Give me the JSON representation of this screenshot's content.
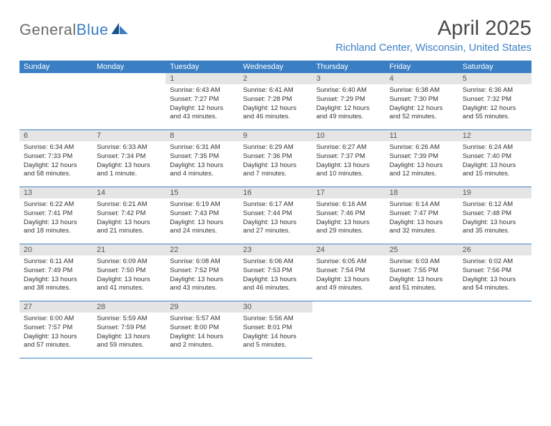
{
  "brand": {
    "name_gray": "General",
    "name_blue": "Blue"
  },
  "title": "April 2025",
  "location": "Richland Center, Wisconsin, United States",
  "colors": {
    "header_bg": "#3a7fc4",
    "day_num_bg": "#e5e5e5",
    "border": "#3a7fc4",
    "text": "#333333",
    "logo_gray": "#6b6b6b",
    "logo_blue": "#3a7fc4"
  },
  "weekdays": [
    "Sunday",
    "Monday",
    "Tuesday",
    "Wednesday",
    "Thursday",
    "Friday",
    "Saturday"
  ],
  "grid": {
    "leading_blanks": 2,
    "trailing_blanks": 3
  },
  "days": [
    {
      "n": 1,
      "sunrise": "6:43 AM",
      "sunset": "7:27 PM",
      "daylight": "12 hours and 43 minutes."
    },
    {
      "n": 2,
      "sunrise": "6:41 AM",
      "sunset": "7:28 PM",
      "daylight": "12 hours and 46 minutes."
    },
    {
      "n": 3,
      "sunrise": "6:40 AM",
      "sunset": "7:29 PM",
      "daylight": "12 hours and 49 minutes."
    },
    {
      "n": 4,
      "sunrise": "6:38 AM",
      "sunset": "7:30 PM",
      "daylight": "12 hours and 52 minutes."
    },
    {
      "n": 5,
      "sunrise": "6:36 AM",
      "sunset": "7:32 PM",
      "daylight": "12 hours and 55 minutes."
    },
    {
      "n": 6,
      "sunrise": "6:34 AM",
      "sunset": "7:33 PM",
      "daylight": "12 hours and 58 minutes."
    },
    {
      "n": 7,
      "sunrise": "6:33 AM",
      "sunset": "7:34 PM",
      "daylight": "13 hours and 1 minute."
    },
    {
      "n": 8,
      "sunrise": "6:31 AM",
      "sunset": "7:35 PM",
      "daylight": "13 hours and 4 minutes."
    },
    {
      "n": 9,
      "sunrise": "6:29 AM",
      "sunset": "7:36 PM",
      "daylight": "13 hours and 7 minutes."
    },
    {
      "n": 10,
      "sunrise": "6:27 AM",
      "sunset": "7:37 PM",
      "daylight": "13 hours and 10 minutes."
    },
    {
      "n": 11,
      "sunrise": "6:26 AM",
      "sunset": "7:39 PM",
      "daylight": "13 hours and 12 minutes."
    },
    {
      "n": 12,
      "sunrise": "6:24 AM",
      "sunset": "7:40 PM",
      "daylight": "13 hours and 15 minutes."
    },
    {
      "n": 13,
      "sunrise": "6:22 AM",
      "sunset": "7:41 PM",
      "daylight": "13 hours and 18 minutes."
    },
    {
      "n": 14,
      "sunrise": "6:21 AM",
      "sunset": "7:42 PM",
      "daylight": "13 hours and 21 minutes."
    },
    {
      "n": 15,
      "sunrise": "6:19 AM",
      "sunset": "7:43 PM",
      "daylight": "13 hours and 24 minutes."
    },
    {
      "n": 16,
      "sunrise": "6:17 AM",
      "sunset": "7:44 PM",
      "daylight": "13 hours and 27 minutes."
    },
    {
      "n": 17,
      "sunrise": "6:16 AM",
      "sunset": "7:46 PM",
      "daylight": "13 hours and 29 minutes."
    },
    {
      "n": 18,
      "sunrise": "6:14 AM",
      "sunset": "7:47 PM",
      "daylight": "13 hours and 32 minutes."
    },
    {
      "n": 19,
      "sunrise": "6:12 AM",
      "sunset": "7:48 PM",
      "daylight": "13 hours and 35 minutes."
    },
    {
      "n": 20,
      "sunrise": "6:11 AM",
      "sunset": "7:49 PM",
      "daylight": "13 hours and 38 minutes."
    },
    {
      "n": 21,
      "sunrise": "6:09 AM",
      "sunset": "7:50 PM",
      "daylight": "13 hours and 41 minutes."
    },
    {
      "n": 22,
      "sunrise": "6:08 AM",
      "sunset": "7:52 PM",
      "daylight": "13 hours and 43 minutes."
    },
    {
      "n": 23,
      "sunrise": "6:06 AM",
      "sunset": "7:53 PM",
      "daylight": "13 hours and 46 minutes."
    },
    {
      "n": 24,
      "sunrise": "6:05 AM",
      "sunset": "7:54 PM",
      "daylight": "13 hours and 49 minutes."
    },
    {
      "n": 25,
      "sunrise": "6:03 AM",
      "sunset": "7:55 PM",
      "daylight": "13 hours and 51 minutes."
    },
    {
      "n": 26,
      "sunrise": "6:02 AM",
      "sunset": "7:56 PM",
      "daylight": "13 hours and 54 minutes."
    },
    {
      "n": 27,
      "sunrise": "6:00 AM",
      "sunset": "7:57 PM",
      "daylight": "13 hours and 57 minutes."
    },
    {
      "n": 28,
      "sunrise": "5:59 AM",
      "sunset": "7:59 PM",
      "daylight": "13 hours and 59 minutes."
    },
    {
      "n": 29,
      "sunrise": "5:57 AM",
      "sunset": "8:00 PM",
      "daylight": "14 hours and 2 minutes."
    },
    {
      "n": 30,
      "sunrise": "5:56 AM",
      "sunset": "8:01 PM",
      "daylight": "14 hours and 5 minutes."
    }
  ],
  "labels": {
    "sunrise_prefix": "Sunrise: ",
    "sunset_prefix": "Sunset: ",
    "daylight_prefix": "Daylight: "
  }
}
